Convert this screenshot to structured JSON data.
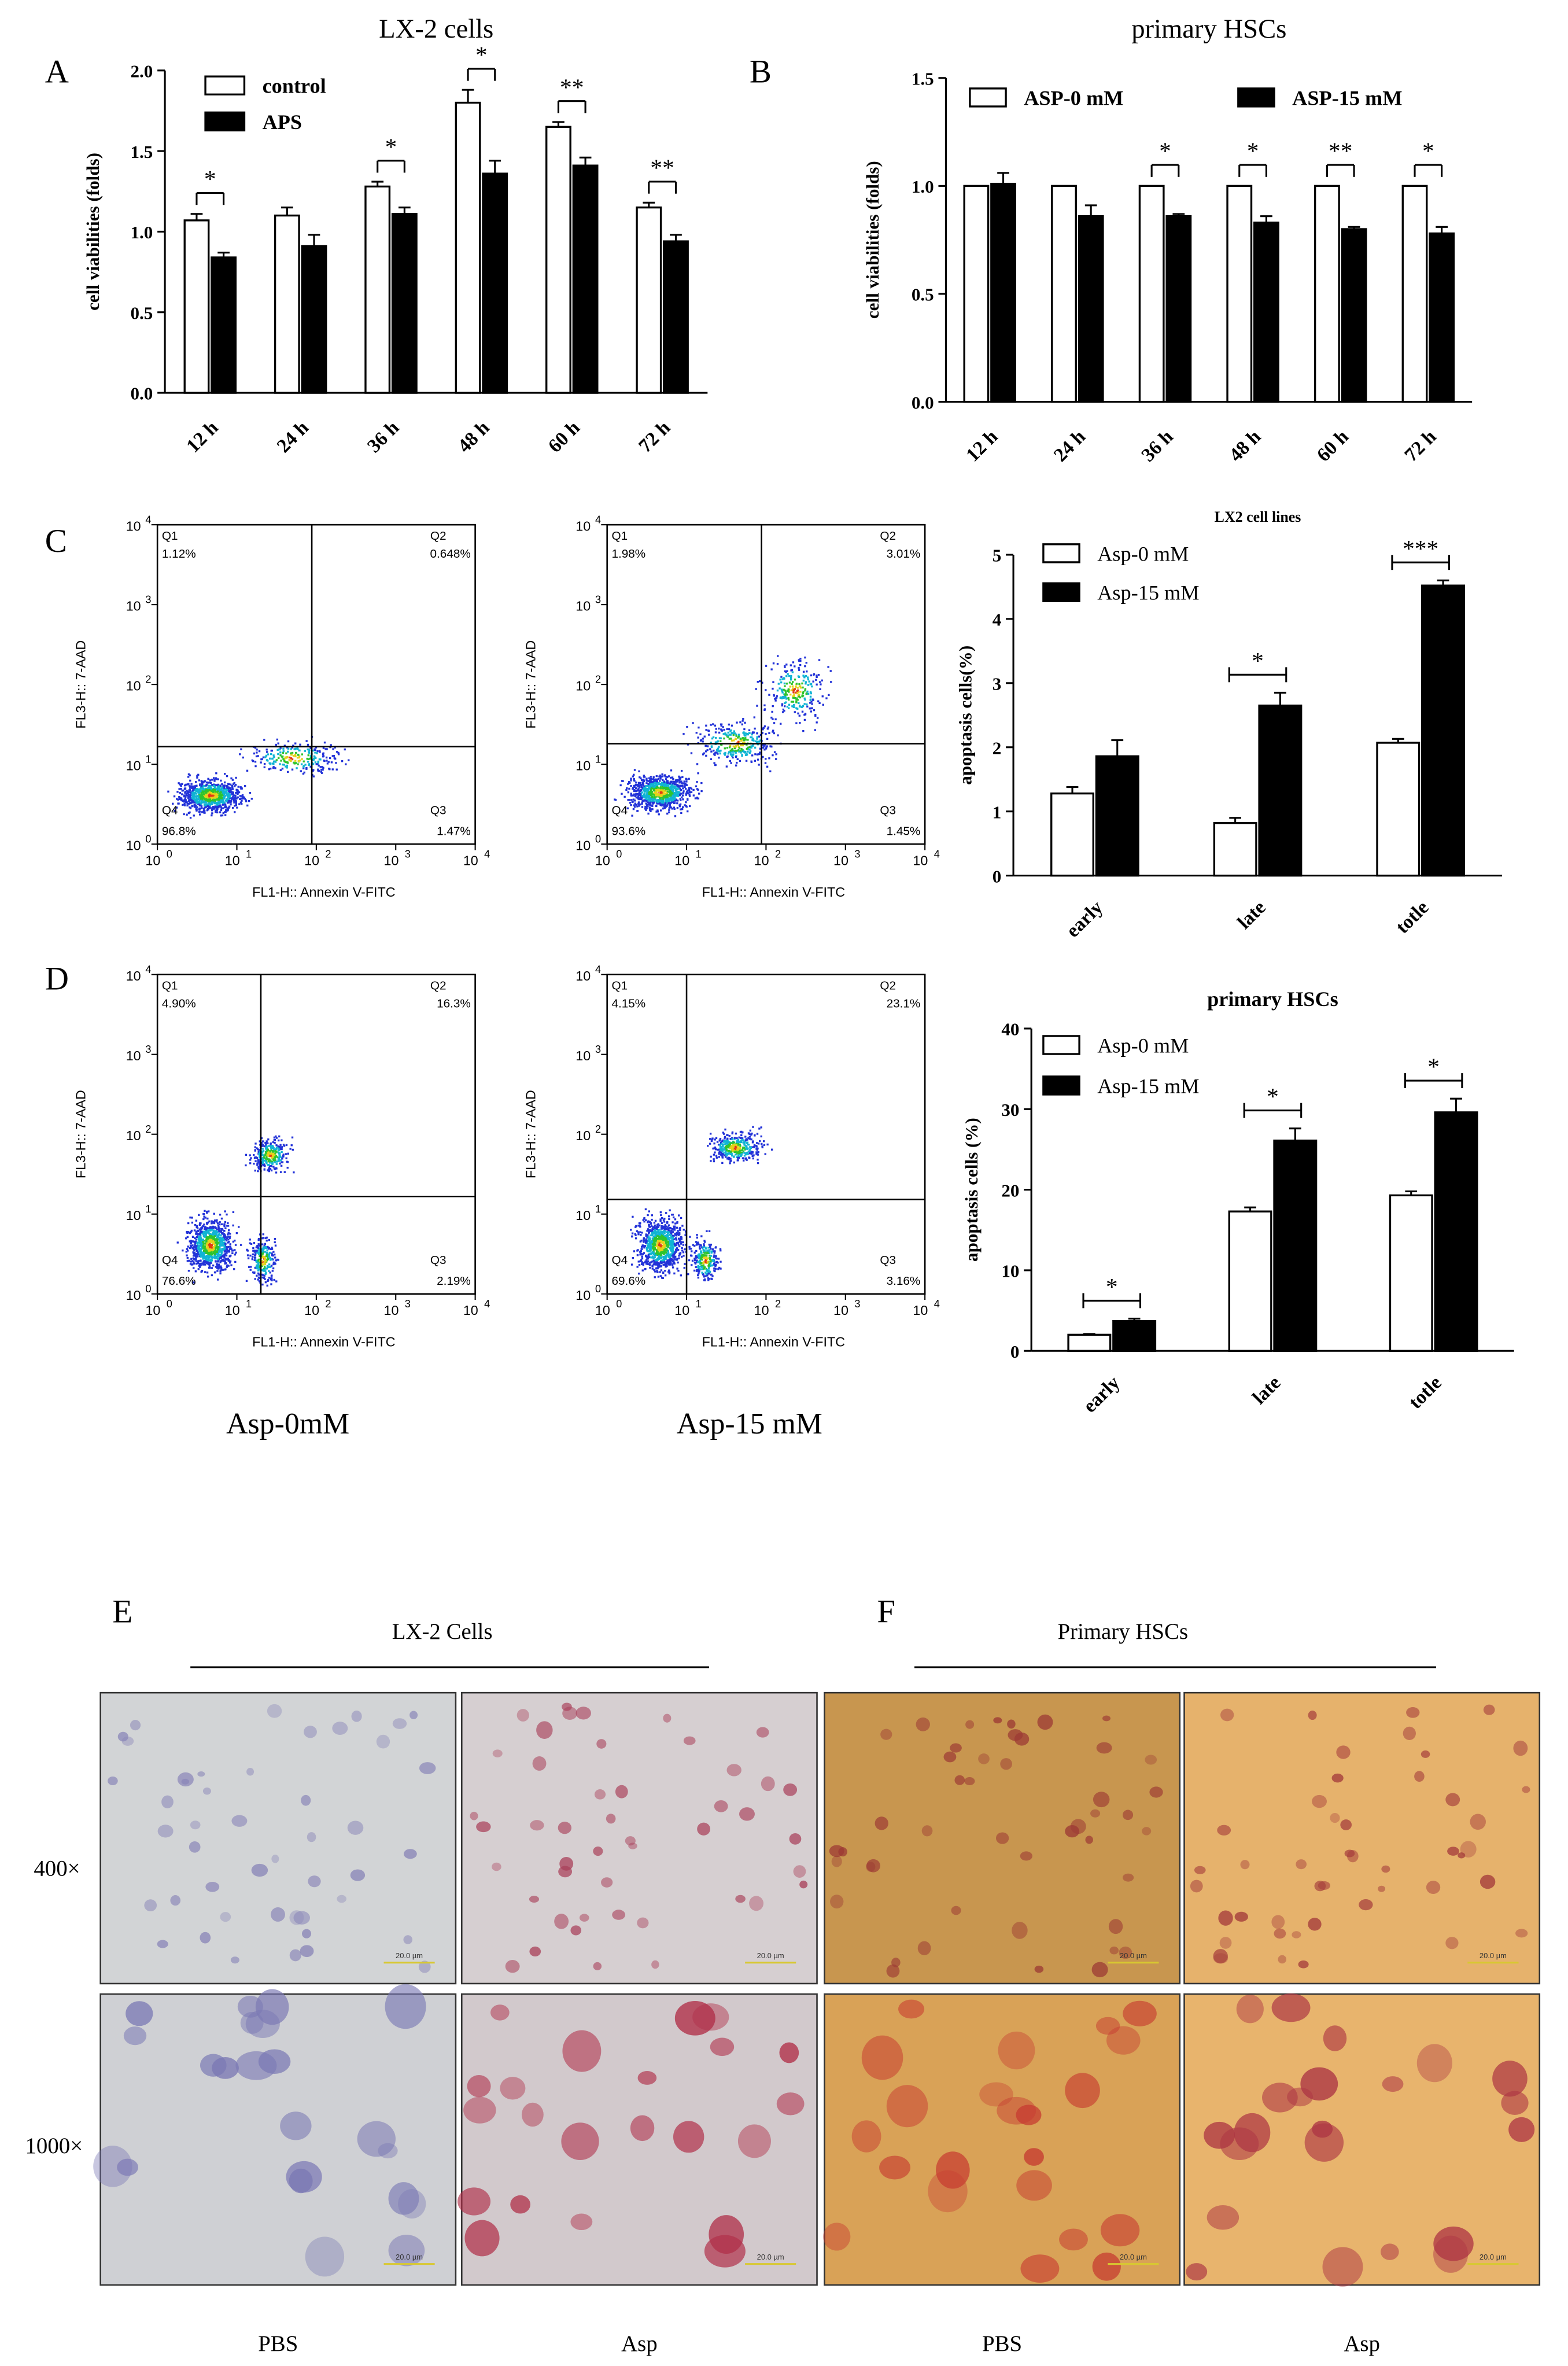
{
  "panels": {
    "A": "A",
    "B": "B",
    "C": "C",
    "D": "D",
    "E": "E",
    "F": "F"
  },
  "chart_data": [
    {
      "id": "A",
      "type": "bar",
      "title": "LX-2 cells",
      "ylabel": "cell viabilities (folds)",
      "xlabel": "",
      "ylim": [
        0,
        2.0
      ],
      "yticks": [
        "0.0",
        "0.5",
        "1.0",
        "1.5",
        "2.0"
      ],
      "categories": [
        "12 h",
        "24 h",
        "36 h",
        "48 h",
        "60 h",
        "72 h"
      ],
      "series": [
        {
          "name": "control",
          "fill": "#ffffff",
          "values": [
            1.07,
            1.1,
            1.28,
            1.8,
            1.65,
            1.15
          ],
          "errors": [
            0.04,
            0.05,
            0.03,
            0.08,
            0.03,
            0.03
          ]
        },
        {
          "name": "APS",
          "fill": "#000000",
          "values": [
            0.84,
            0.91,
            1.11,
            1.36,
            1.41,
            0.94
          ],
          "errors": [
            0.03,
            0.07,
            0.04,
            0.08,
            0.05,
            0.04
          ]
        }
      ],
      "significance": [
        "*",
        "",
        "*",
        "*",
        "**",
        "**"
      ],
      "legend_position": "top-left"
    },
    {
      "id": "B",
      "type": "bar",
      "title": "primary HSCs",
      "ylabel": "cell viabilities (folds)",
      "xlabel": "",
      "ylim": [
        0,
        1.5
      ],
      "yticks": [
        "0.0",
        "0.5",
        "1.0",
        "1.5"
      ],
      "categories": [
        "12 h",
        "24 h",
        "36 h",
        "48 h",
        "60 h",
        "72 h"
      ],
      "series": [
        {
          "name": "ASP-0 mM",
          "fill": "#ffffff",
          "values": [
            1.0,
            1.0,
            1.0,
            1.0,
            1.0,
            1.0
          ],
          "errors": [
            0,
            0,
            0,
            0,
            0,
            0
          ]
        },
        {
          "name": "ASP-15 mM",
          "fill": "#000000",
          "values": [
            1.01,
            0.86,
            0.86,
            0.83,
            0.8,
            0.78
          ],
          "errors": [
            0.05,
            0.05,
            0.01,
            0.03,
            0.01,
            0.03
          ]
        }
      ],
      "significance": [
        "",
        "",
        "*",
        "*",
        "**",
        "*"
      ],
      "legend_position": "top"
    },
    {
      "id": "C-bar",
      "type": "bar",
      "title": "LX2 cell lines",
      "ylabel": "apoptasis cells(%)",
      "xlabel": "",
      "ylim": [
        0,
        5
      ],
      "yticks": [
        "0",
        "1",
        "2",
        "3",
        "4",
        "5"
      ],
      "categories": [
        "early",
        "late",
        "totle"
      ],
      "series": [
        {
          "name": "Asp-0 mM",
          "fill": "#ffffff",
          "values": [
            1.28,
            0.82,
            2.07
          ],
          "errors": [
            0.1,
            0.08,
            0.06
          ]
        },
        {
          "name": "Asp-15 mM",
          "fill": "#000000",
          "values": [
            1.86,
            2.65,
            4.52
          ],
          "errors": [
            0.25,
            0.2,
            0.08
          ]
        }
      ],
      "significance": [
        "",
        "*",
        "***"
      ],
      "legend_position": "top-left"
    },
    {
      "id": "D-bar",
      "type": "bar",
      "title": "primary HSCs",
      "ylabel": "apoptasis cells (%)",
      "xlabel": "",
      "ylim": [
        0,
        40
      ],
      "yticks": [
        "0",
        "10",
        "20",
        "30",
        "40"
      ],
      "categories": [
        "early",
        "late",
        "totle"
      ],
      "series": [
        {
          "name": "Asp-0 mM",
          "fill": "#ffffff",
          "values": [
            2.0,
            17.3,
            19.3
          ],
          "errors": [
            0.1,
            0.5,
            0.5
          ]
        },
        {
          "name": "Asp-15 mM",
          "fill": "#000000",
          "values": [
            3.7,
            26.1,
            29.6
          ],
          "errors": [
            0.3,
            1.5,
            1.7
          ]
        }
      ],
      "significance": [
        "*",
        "*",
        "*"
      ],
      "legend_position": "top-left"
    },
    {
      "id": "flow",
      "type": "scatter",
      "xlabel": "FL1-H:: Annexin V-FITC",
      "ylabel": "FL3-H:: 7-AAD",
      "log_axes": true,
      "tick_labels": [
        "10",
        "10",
        "10",
        "10",
        "10"
      ],
      "tick_exponents": [
        "0",
        "1",
        "2",
        "3",
        "4"
      ],
      "plots": [
        {
          "quadrants": {
            "Q1": "1.12%",
            "Q2": "0.648%",
            "Q3": "1.47%",
            "Q4": "96.8%"
          }
        },
        {
          "quadrants": {
            "Q1": "1.98%",
            "Q2": "3.01%",
            "Q3": "1.45%",
            "Q4": "93.6%"
          }
        },
        {
          "quadrants": {
            "Q1": "4.90%",
            "Q2": "16.3%",
            "Q3": "2.19%",
            "Q4": "76.6%"
          }
        },
        {
          "quadrants": {
            "Q1": "4.15%",
            "Q2": "23.1%",
            "Q3": "3.16%",
            "Q4": "69.6%"
          }
        }
      ],
      "quadrant_names": [
        "Q1",
        "Q2",
        "Q3",
        "Q4"
      ]
    }
  ],
  "flow_captions": [
    "Asp-0mM",
    "Asp-15 mM"
  ],
  "micro": {
    "groups": [
      "LX-2 Cells",
      "Primary HSCs"
    ],
    "rows": [
      "400×",
      "1000×"
    ],
    "cols": [
      "PBS",
      "Asp",
      "PBS",
      "Asp"
    ],
    "scale_label": "20.0 µm"
  }
}
